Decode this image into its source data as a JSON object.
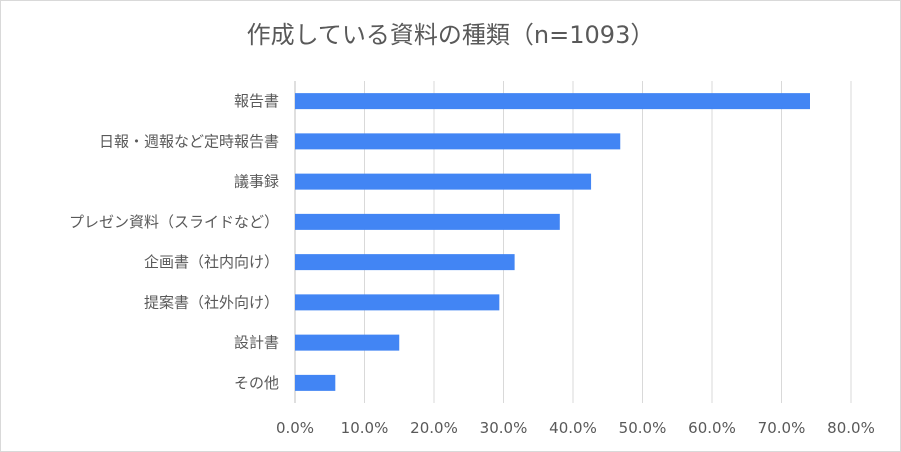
{
  "chart_data": {
    "type": "bar",
    "orientation": "horizontal",
    "title": "作成している資料の種類（n=1093）",
    "categories": [
      "報告書",
      "日報・週報など定時報告書",
      "議事録",
      "プレゼン資料（スライドなど）",
      "企画書（社内向け）",
      "提案書（社外向け）",
      "設計書",
      "その他"
    ],
    "values": [
      74.1,
      46.8,
      42.6,
      38.1,
      31.6,
      29.4,
      15.0,
      5.8
    ],
    "xlim": [
      0,
      80
    ],
    "xticks": [
      "0.0%",
      "10.0%",
      "20.0%",
      "30.0%",
      "40.0%",
      "50.0%",
      "60.0%",
      "70.0%",
      "80.0%"
    ],
    "grid": true,
    "legend": "none",
    "bar_color": "#4285f4",
    "grid_color": "#d9d9d9"
  }
}
